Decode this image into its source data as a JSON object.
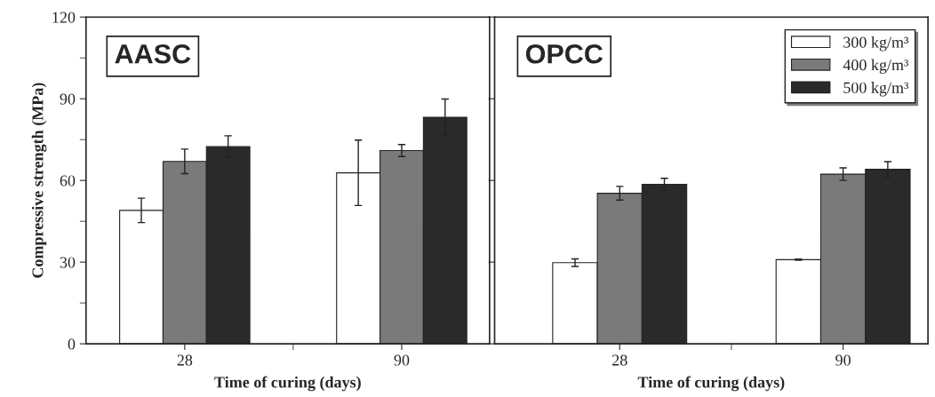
{
  "chart_data": [
    {
      "type": "bar",
      "categories": [
        "28",
        "90"
      ],
      "xlabel": "Time of curing (days)",
      "ylabel": "Compressive strength (MPa)",
      "ylim": [
        0,
        120
      ],
      "yticks": [
        0,
        30,
        60,
        90,
        120
      ],
      "annotations": [
        "AASC"
      ],
      "series": [
        {
          "color": "#ffffff",
          "values": [
            49,
            62.8
          ],
          "errors": [
            4.5,
            12
          ]
        },
        {
          "color": "#7a7a7a",
          "values": [
            67,
            71
          ],
          "errors": [
            4.5,
            2.2
          ]
        },
        {
          "color": "#2a2a2a",
          "values": [
            72.4,
            83.2
          ],
          "errors": [
            4,
            6.7
          ]
        }
      ]
    },
    {
      "type": "bar",
      "categories": [
        "28",
        "90"
      ],
      "xlabel": "Time of curing (days)",
      "ylim": [
        0,
        120
      ],
      "yticks": [
        0,
        30,
        60,
        90,
        120
      ],
      "annotations": [
        "OPCC"
      ],
      "legend": "top right",
      "tick_labels": "x",
      "series": [
        {
          "name": "300 kg/m³",
          "color": "#ffffff",
          "values": [
            29.8,
            30.9
          ],
          "errors": [
            1.4,
            0.2
          ]
        },
        {
          "name": "400 kg/m³",
          "color": "#7a7a7a",
          "values": [
            55.3,
            62.3
          ],
          "errors": [
            2.5,
            2.3
          ]
        },
        {
          "name": "500 kg/m³",
          "color": "#2a2a2a",
          "values": [
            58.6,
            64.1
          ],
          "errors": [
            2.2,
            2.8
          ]
        }
      ]
    }
  ]
}
